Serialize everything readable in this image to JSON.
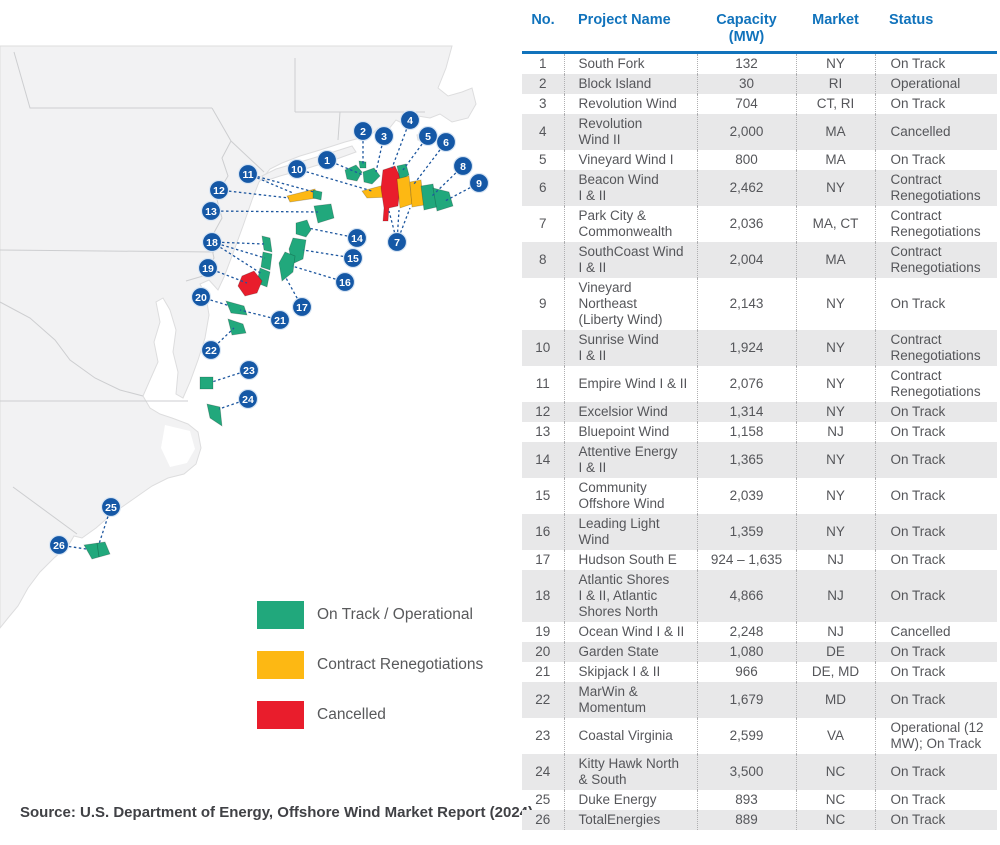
{
  "source_note": "Source: U.S. Department of Energy, Offshore Wind Market Report (2024).",
  "legend": {
    "items": [
      {
        "key": "on_track",
        "label": "On Track / Operational",
        "color": "#21A87C"
      },
      {
        "key": "renegotiations",
        "label": "Contract Renegotiations",
        "color": "#FDB813"
      },
      {
        "key": "cancelled",
        "label": "Cancelled",
        "color": "#E91D2C"
      }
    ]
  },
  "map": {
    "marker_color": "#1558A6",
    "marker_ring_color": "#D9E6F4",
    "line_color": "#1E579F",
    "land_color": "#F2F2F3",
    "state_border_color": "#CDCED0"
  },
  "table": {
    "header_color": "#1173BC",
    "columns": [
      "No.",
      "Project Name",
      "Capacity\n(MW)",
      "Market",
      "Status"
    ],
    "rows": [
      {
        "no": "1",
        "name": "South Fork",
        "capacity": "132",
        "market": "NY",
        "status": "On Track"
      },
      {
        "no": "2",
        "name": "Block Island",
        "capacity": "30",
        "market": "RI",
        "status": "Operational"
      },
      {
        "no": "3",
        "name": "Revolution Wind",
        "capacity": "704",
        "market": "CT, RI",
        "status": "On Track"
      },
      {
        "no": "4",
        "name": "Revolution\nWind II",
        "capacity": "2,000",
        "market": "MA",
        "status": "Cancelled"
      },
      {
        "no": "5",
        "name": "Vineyard Wind I",
        "capacity": "800",
        "market": "MA",
        "status": "On Track"
      },
      {
        "no": "6",
        "name": "Beacon Wind\nI & II",
        "capacity": "2,462",
        "market": "NY",
        "status": "Contract\nRenegotiations"
      },
      {
        "no": "7",
        "name": "Park City &\nCommonwealth",
        "capacity": "2,036",
        "market": "MA, CT",
        "status": "Contract\nRenegotiations"
      },
      {
        "no": "8",
        "name": "SouthCoast Wind\nI & II",
        "capacity": "2,004",
        "market": "MA",
        "status": "Contract\nRenegotiations"
      },
      {
        "no": "9",
        "name": "Vineyard\nNortheast\n(Liberty Wind)",
        "capacity": "2,143",
        "market": "NY",
        "status": "On Track"
      },
      {
        "no": "10",
        "name": "Sunrise Wind\nI & II",
        "capacity": "1,924",
        "market": "NY",
        "status": "Contract\nRenegotiations"
      },
      {
        "no": "11",
        "name": "Empire Wind I & II",
        "capacity": "2,076",
        "market": "NY",
        "status": "Contract\nRenegotiations"
      },
      {
        "no": "12",
        "name": "Excelsior Wind",
        "capacity": "1,314",
        "market": "NY",
        "status": "On Track"
      },
      {
        "no": "13",
        "name": "Bluepoint Wind",
        "capacity": "1,158",
        "market": "NJ",
        "status": "On Track"
      },
      {
        "no": "14",
        "name": "Attentive Energy\nI & II",
        "capacity": "1,365",
        "market": "NY",
        "status": "On Track"
      },
      {
        "no": "15",
        "name": "Community\nOffshore Wind",
        "capacity": "2,039",
        "market": "NY",
        "status": "On Track"
      },
      {
        "no": "16",
        "name": "Leading Light\nWind",
        "capacity": "1,359",
        "market": "NY",
        "status": "On Track"
      },
      {
        "no": "17",
        "name": "Hudson South E",
        "capacity": "924 – 1,635",
        "market": "NJ",
        "status": "On Track"
      },
      {
        "no": "18",
        "name": "Atlantic Shores\nI & II, Atlantic\nShores North",
        "capacity": "4,866",
        "market": "NJ",
        "status": "On Track"
      },
      {
        "no": "19",
        "name": "Ocean Wind I & II",
        "capacity": "2,248",
        "market": "NJ",
        "status": "Cancelled"
      },
      {
        "no": "20",
        "name": "Garden State",
        "capacity": "1,080",
        "market": "DE",
        "status": "On Track"
      },
      {
        "no": "21",
        "name": "Skipjack I & II",
        "capacity": "966",
        "market": "DE, MD",
        "status": "On Track"
      },
      {
        "no": "22",
        "name": "MarWin &\nMomentum",
        "capacity": "1,679",
        "market": "MD",
        "status": "On Track"
      },
      {
        "no": "23",
        "name": "Coastal Virginia",
        "capacity": "2,599",
        "market": "VA",
        "status": "Operational (12\nMW); On Track"
      },
      {
        "no": "24",
        "name": "Kitty Hawk North\n& South",
        "capacity": "3,500",
        "market": "NC",
        "status": "On Track"
      },
      {
        "no": "25",
        "name": "Duke Energy",
        "capacity": "893",
        "market": "NC",
        "status": "On Track"
      },
      {
        "no": "26",
        "name": "TotalEnergies",
        "capacity": "889",
        "market": "NC",
        "status": "On Track"
      }
    ]
  }
}
